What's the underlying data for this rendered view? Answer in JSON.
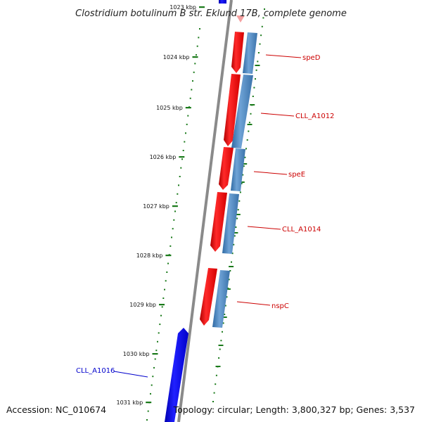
{
  "title": "Clostridium botulinum B str. Eklund 17B, complete genome",
  "footer": {
    "accession": "Accession: NC_010674",
    "topology": "Topology: circular; Length: 3,800,327 bp; Genes: 3,537"
  },
  "colors": {
    "forward_gene": "#f01010",
    "reverse_gene": "#4a82b8",
    "other_strand_gene": "#1010e0",
    "tick": "#1a7a1a",
    "backbone": "#8a8a8a",
    "forward_label": "#cc0000",
    "reverse_label": "#0000cc"
  },
  "ruler": {
    "ticks": [
      "1023 kbp",
      "1024 kbp",
      "1025 kbp",
      "1026 kbp",
      "1027 kbp",
      "1028 kbp",
      "1029 kbp",
      "1030 kbp",
      "1031 kbp"
    ]
  },
  "genes": [
    {
      "label": "speD",
      "strand": "forward"
    },
    {
      "label": "CLL_A1012",
      "strand": "forward"
    },
    {
      "label": "speE",
      "strand": "forward"
    },
    {
      "label": "CLL_A1014",
      "strand": "forward"
    },
    {
      "label": "nspC",
      "strand": "forward"
    },
    {
      "label": "CLL_A1016",
      "strand": "reverse"
    }
  ]
}
